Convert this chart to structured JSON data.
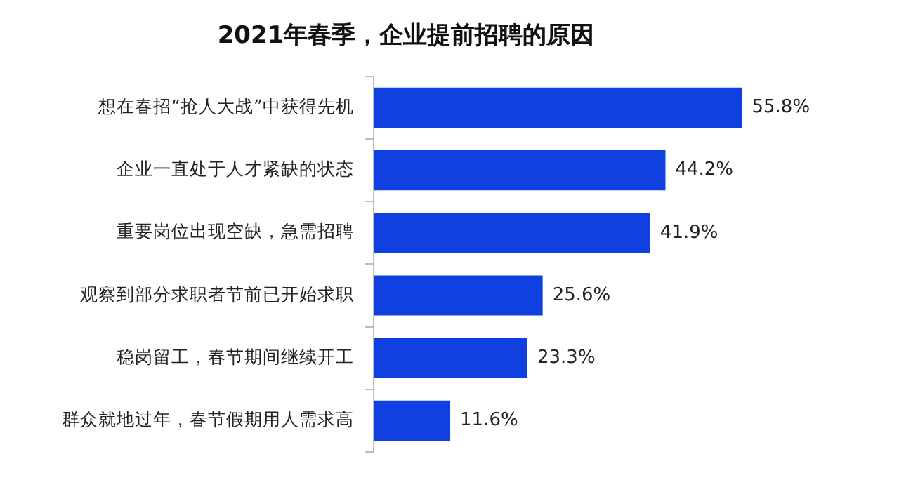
{
  "chart_data": {
    "type": "bar",
    "orientation": "horizontal",
    "title": "2021年春季，企业提前招聘的原因",
    "categories": [
      "想在春招“抢人大战”中获得先机",
      "企业一直处于人才紧缺的状态",
      "重要岗位出现空缺，急需招聘",
      "观察到部分求职者节前已开始求职",
      "稳岗留工，春节期间继续开工",
      "群众就地过年，春节假期用人需求高"
    ],
    "values": [
      55.8,
      44.2,
      41.9,
      25.6,
      23.3,
      11.6
    ],
    "value_labels": [
      "55.8%",
      "44.2%",
      "41.9%",
      "25.6%",
      "23.3%",
      "11.6%"
    ],
    "color": "#1040e0",
    "tick_labels": "y",
    "grid": false,
    "legend": false
  }
}
